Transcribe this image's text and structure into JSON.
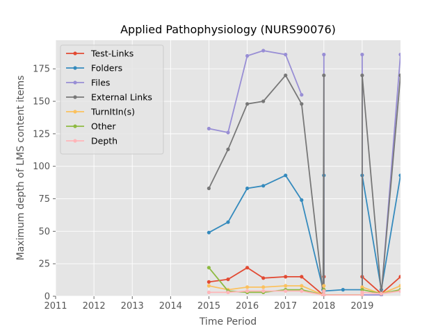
{
  "chart_data": {
    "type": "line",
    "title": "Applied Pathophysiology (NURS90076)",
    "xlabel": "Time Period",
    "ylabel": "Maximum depth of LMS content items",
    "xlim": [
      2011.0,
      2020.0
    ],
    "ylim": [
      0,
      197
    ],
    "x_ticks": [
      2011,
      2012,
      2013,
      2014,
      2015,
      2016,
      2017,
      2018,
      2019
    ],
    "y_ticks": [
      0,
      25,
      50,
      75,
      100,
      125,
      150,
      175
    ],
    "grid": true,
    "legend_position": "upper-left",
    "series": [
      {
        "name": "Test-Links",
        "color": "#E24A33",
        "points": [
          [
            2015.0,
            11
          ],
          [
            2015.5,
            13
          ],
          [
            2016.0,
            22
          ],
          [
            2016.42,
            14
          ],
          [
            2017.0,
            15
          ],
          [
            2017.42,
            15
          ],
          [
            2017.98,
            1
          ],
          [
            2018.0,
            15
          ],
          [
            2018.0,
            1
          ],
          [
            2019.0,
            1
          ],
          [
            2019.0,
            15
          ],
          [
            2019.5,
            2
          ],
          [
            2020.0,
            15
          ]
        ]
      },
      {
        "name": "Folders",
        "color": "#348ABD",
        "points": [
          [
            2015.0,
            49
          ],
          [
            2015.5,
            57
          ],
          [
            2016.0,
            83
          ],
          [
            2016.42,
            85
          ],
          [
            2017.0,
            93
          ],
          [
            2017.42,
            74
          ],
          [
            2017.98,
            5
          ],
          [
            2018.0,
            93
          ],
          [
            2018.0,
            4
          ],
          [
            2018.5,
            5
          ],
          [
            2019.0,
            5
          ],
          [
            2019.0,
            93
          ],
          [
            2019.5,
            5
          ],
          [
            2020.0,
            93
          ]
        ]
      },
      {
        "name": "Files",
        "color": "#988ED5",
        "points": [
          [
            2015.0,
            129
          ],
          [
            2015.5,
            126
          ],
          [
            2016.0,
            185
          ],
          [
            2016.42,
            189
          ],
          [
            2017.0,
            186
          ],
          [
            2017.42,
            155
          ],
          [
            null,
            null
          ],
          [
            2018.0,
            186
          ],
          [
            2018.0,
            1
          ],
          [
            null,
            null
          ],
          [
            2019.0,
            186
          ],
          [
            2019.0,
            1
          ],
          [
            2019.5,
            1
          ],
          [
            2020.0,
            186
          ]
        ]
      },
      {
        "name": "External Links",
        "color": "#777777",
        "points": [
          [
            2015.0,
            83
          ],
          [
            2015.5,
            113
          ],
          [
            2016.0,
            148
          ],
          [
            2016.42,
            150
          ],
          [
            2017.0,
            170
          ],
          [
            2017.42,
            148
          ],
          [
            2017.98,
            1
          ],
          [
            2018.0,
            170
          ],
          [
            2018.0,
            1
          ],
          [
            2019.0,
            1
          ],
          [
            2019.0,
            170
          ],
          [
            2019.5,
            2
          ],
          [
            2020.0,
            170
          ]
        ]
      },
      {
        "name": "TurnItIn(s)",
        "color": "#FBC15E",
        "points": [
          [
            2015.0,
            8
          ],
          [
            2015.5,
            5
          ],
          [
            2016.0,
            7
          ],
          [
            2016.42,
            7
          ],
          [
            2017.0,
            8
          ],
          [
            2017.42,
            8
          ],
          [
            2017.98,
            1
          ],
          [
            2018.0,
            8
          ],
          [
            2018.0,
            1
          ],
          [
            2019.0,
            1
          ],
          [
            2019.0,
            7
          ],
          [
            2019.5,
            2
          ],
          [
            2020.0,
            8
          ]
        ]
      },
      {
        "name": "Other",
        "color": "#8EBA42",
        "points": [
          [
            2015.0,
            22
          ],
          [
            2015.5,
            4
          ],
          [
            2016.0,
            3
          ],
          [
            2016.42,
            3
          ],
          [
            2017.0,
            5
          ],
          [
            2017.42,
            5
          ],
          [
            2017.98,
            1
          ],
          [
            2018.0,
            5
          ],
          [
            2018.0,
            1
          ],
          [
            2019.0,
            1
          ],
          [
            2019.0,
            5
          ],
          [
            2019.5,
            2
          ],
          [
            2020.0,
            5
          ]
        ]
      },
      {
        "name": "Depth",
        "color": "#FFB5B8",
        "points": [
          [
            2015.0,
            3
          ],
          [
            2015.5,
            3
          ],
          [
            2016.0,
            4
          ],
          [
            2016.42,
            4
          ],
          [
            2017.0,
            4
          ],
          [
            2017.42,
            4
          ],
          [
            2017.98,
            1
          ],
          [
            2018.0,
            4
          ],
          [
            2018.0,
            1
          ],
          [
            2019.0,
            1
          ],
          [
            2019.0,
            3
          ],
          [
            2019.5,
            2
          ],
          [
            2020.0,
            4
          ]
        ]
      }
    ]
  },
  "colors": {
    "plot_background": "#E5E5E5",
    "grid": "#FFFFFF",
    "text": "#555555"
  }
}
